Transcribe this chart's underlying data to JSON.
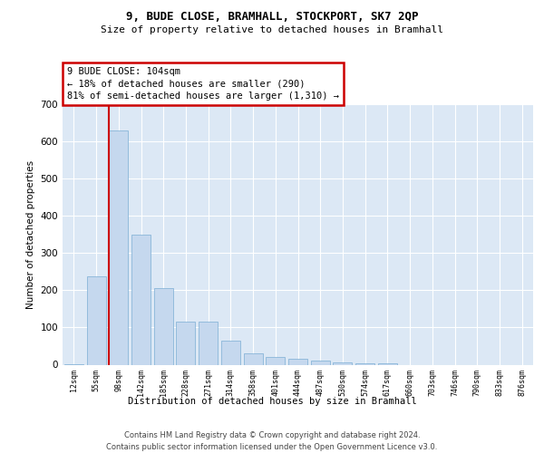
{
  "title1": "9, BUDE CLOSE, BRAMHALL, STOCKPORT, SK7 2QP",
  "title2": "Size of property relative to detached houses in Bramhall",
  "xlabel": "Distribution of detached houses by size in Bramhall",
  "ylabel": "Number of detached properties",
  "bar_color": "#c5d8ee",
  "bar_edge_color": "#7aadd4",
  "background_color": "#dce8f5",
  "grid_color": "#f0f4fa",
  "annotation_text": "9 BUDE CLOSE: 104sqm\n← 18% of detached houses are smaller (290)\n81% of semi-detached houses are larger (1,310) →",
  "vline_color": "#cc0000",
  "annotation_box_edge": "#cc0000",
  "categories": [
    "12sqm",
    "55sqm",
    "98sqm",
    "142sqm",
    "185sqm",
    "228sqm",
    "271sqm",
    "314sqm",
    "358sqm",
    "401sqm",
    "444sqm",
    "487sqm",
    "530sqm",
    "574sqm",
    "617sqm",
    "660sqm",
    "703sqm",
    "746sqm",
    "790sqm",
    "833sqm",
    "876sqm"
  ],
  "values": [
    2,
    237,
    630,
    350,
    205,
    115,
    115,
    65,
    30,
    20,
    17,
    10,
    7,
    3,
    3,
    0,
    0,
    0,
    0,
    0,
    0
  ],
  "ylim": [
    0,
    700
  ],
  "yticks": [
    0,
    100,
    200,
    300,
    400,
    500,
    600,
    700
  ],
  "footer1": "Contains HM Land Registry data © Crown copyright and database right 2024.",
  "footer2": "Contains public sector information licensed under the Open Government Licence v3.0."
}
